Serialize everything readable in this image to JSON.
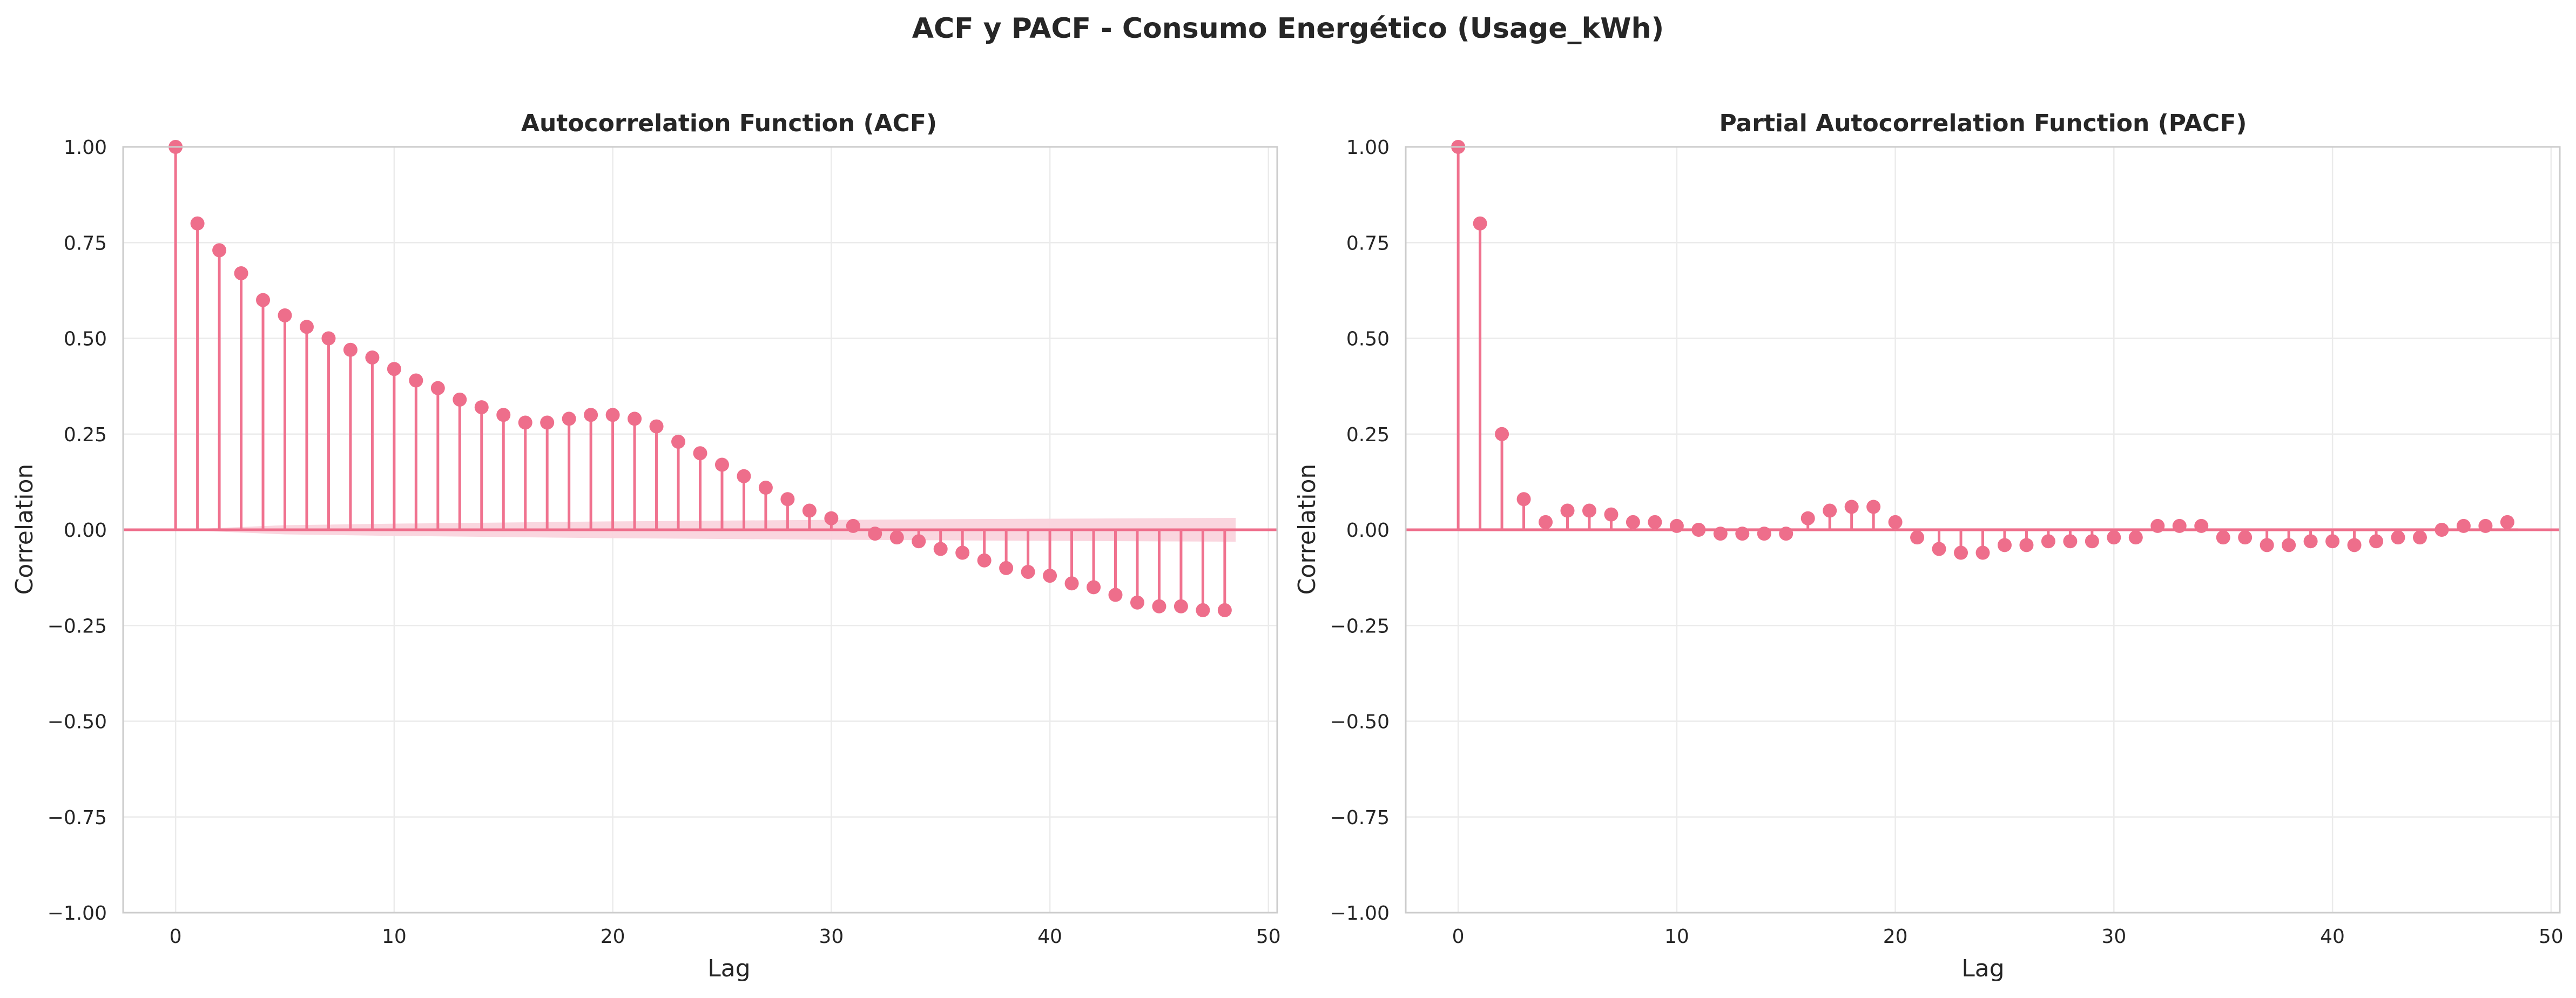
{
  "figure": {
    "title": "ACF y PACF - Consumo Energético (Usage_kWh)"
  },
  "colors": {
    "stem": "#f0728f",
    "marker": "#ee6e8b",
    "band": "#fad4dd",
    "zero_line": "#ee6e8b",
    "grid": "#ebebeb",
    "text": "#262626"
  },
  "chart_data": [
    {
      "type": "stem",
      "title": "Autocorrelation Function (ACF)",
      "xlabel": "Lag",
      "ylabel": "Correlation",
      "xlim": [
        -2.4,
        50.4
      ],
      "ylim": [
        -1.0,
        1.0
      ],
      "xticks": [
        0,
        10,
        20,
        30,
        40,
        50
      ],
      "yticks": [
        -1.0,
        -0.75,
        -0.5,
        -0.25,
        0.0,
        0.25,
        0.5,
        0.75,
        1.0
      ],
      "xtick_labels": [
        "0",
        "10",
        "20",
        "30",
        "40",
        "50"
      ],
      "ytick_labels": [
        "−1.00",
        "−0.75",
        "−0.50",
        "−0.25",
        "0.00",
        "0.25",
        "0.50",
        "0.75",
        "1.00"
      ],
      "grid": true,
      "lags": [
        0,
        1,
        2,
        3,
        4,
        5,
        6,
        7,
        8,
        9,
        10,
        11,
        12,
        13,
        14,
        15,
        16,
        17,
        18,
        19,
        20,
        21,
        22,
        23,
        24,
        25,
        26,
        27,
        28,
        29,
        30,
        31,
        32,
        33,
        34,
        35,
        36,
        37,
        38,
        39,
        40,
        41,
        42,
        43,
        44,
        45,
        46,
        47,
        48
      ],
      "values": [
        1.0,
        0.8,
        0.73,
        0.67,
        0.6,
        0.56,
        0.53,
        0.5,
        0.47,
        0.45,
        0.42,
        0.39,
        0.37,
        0.34,
        0.32,
        0.3,
        0.28,
        0.28,
        0.29,
        0.3,
        0.3,
        0.29,
        0.27,
        0.23,
        0.2,
        0.17,
        0.14,
        0.11,
        0.08,
        0.05,
        0.03,
        0.01,
        -0.01,
        -0.02,
        -0.03,
        -0.05,
        -0.06,
        -0.08,
        -0.1,
        -0.11,
        -0.12,
        -0.14,
        -0.15,
        -0.17,
        -0.19,
        -0.2,
        -0.2,
        -0.21,
        -0.21
      ],
      "confidence_band": {
        "lags": [
          0,
          5,
          10,
          20,
          30,
          40,
          48.5
        ],
        "upper": [
          0.0,
          0.012,
          0.016,
          0.022,
          0.026,
          0.029,
          0.031
        ],
        "lower": [
          0.0,
          -0.012,
          -0.016,
          -0.022,
          -0.026,
          -0.029,
          -0.031
        ]
      }
    },
    {
      "type": "stem",
      "title": "Partial Autocorrelation Function (PACF)",
      "xlabel": "Lag",
      "ylabel": "Correlation",
      "xlim": [
        -2.4,
        50.4
      ],
      "ylim": [
        -1.0,
        1.0
      ],
      "xticks": [
        0,
        10,
        20,
        30,
        40,
        50
      ],
      "yticks": [
        -1.0,
        -0.75,
        -0.5,
        -0.25,
        0.0,
        0.25,
        0.5,
        0.75,
        1.0
      ],
      "xtick_labels": [
        "0",
        "10",
        "20",
        "30",
        "40",
        "50"
      ],
      "ytick_labels": [
        "−1.00",
        "−0.75",
        "−0.50",
        "−0.25",
        "0.00",
        "0.25",
        "0.50",
        "0.75",
        "1.00"
      ],
      "grid": true,
      "lags": [
        0,
        1,
        2,
        3,
        4,
        5,
        6,
        7,
        8,
        9,
        10,
        11,
        12,
        13,
        14,
        15,
        16,
        17,
        18,
        19,
        20,
        21,
        22,
        23,
        24,
        25,
        26,
        27,
        28,
        29,
        30,
        31,
        32,
        33,
        34,
        35,
        36,
        37,
        38,
        39,
        40,
        41,
        42,
        43,
        44,
        45,
        46,
        47,
        48
      ],
      "values": [
        1.0,
        0.8,
        0.25,
        0.08,
        0.02,
        0.05,
        0.05,
        0.04,
        0.02,
        0.02,
        0.01,
        0.0,
        -0.01,
        -0.01,
        -0.01,
        -0.01,
        0.03,
        0.05,
        0.06,
        0.06,
        0.02,
        -0.02,
        -0.05,
        -0.06,
        -0.06,
        -0.04,
        -0.04,
        -0.03,
        -0.03,
        -0.03,
        -0.02,
        -0.02,
        0.01,
        0.01,
        0.01,
        -0.02,
        -0.02,
        -0.04,
        -0.04,
        -0.03,
        -0.03,
        -0.04,
        -0.03,
        -0.02,
        -0.02,
        0.0,
        0.01,
        0.01,
        0.02
      ],
      "confidence_band": {
        "lags": [
          0,
          48.5
        ],
        "upper": [
          0.004,
          0.004
        ],
        "lower": [
          -0.004,
          -0.004
        ]
      }
    }
  ]
}
